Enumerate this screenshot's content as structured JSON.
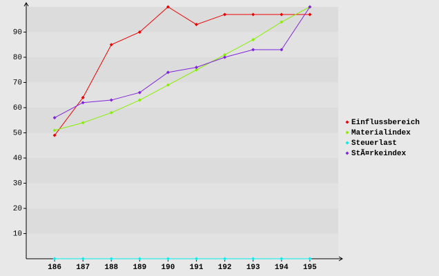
{
  "chart_data": {
    "type": "line",
    "categories": [
      "186",
      "187",
      "188",
      "189",
      "190",
      "191",
      "192",
      "193",
      "194",
      "195"
    ],
    "series": [
      {
        "name": "Einflussbereich",
        "color": "#ee0000",
        "values": [
          49,
          64,
          85,
          90,
          100,
          93,
          97,
          97,
          97,
          97
        ]
      },
      {
        "name": "Materialindex",
        "color": "#88ee00",
        "values": [
          51,
          54,
          58,
          63,
          69,
          75,
          81,
          87,
          94,
          100
        ]
      },
      {
        "name": "Steuerlast",
        "color": "#00eeee",
        "values": [
          0,
          0,
          0,
          0,
          0,
          0,
          0,
          0,
          0,
          0
        ]
      },
      {
        "name": "StÃ¤rkeindex",
        "color": "#7f22dd",
        "values": [
          56,
          62,
          63,
          66,
          74,
          76,
          80,
          83,
          83,
          100
        ]
      }
    ],
    "ylim": [
      0,
      100
    ],
    "yticks": [
      10,
      20,
      30,
      40,
      50,
      60,
      70,
      80,
      90
    ],
    "grid": true,
    "legend": "right"
  }
}
